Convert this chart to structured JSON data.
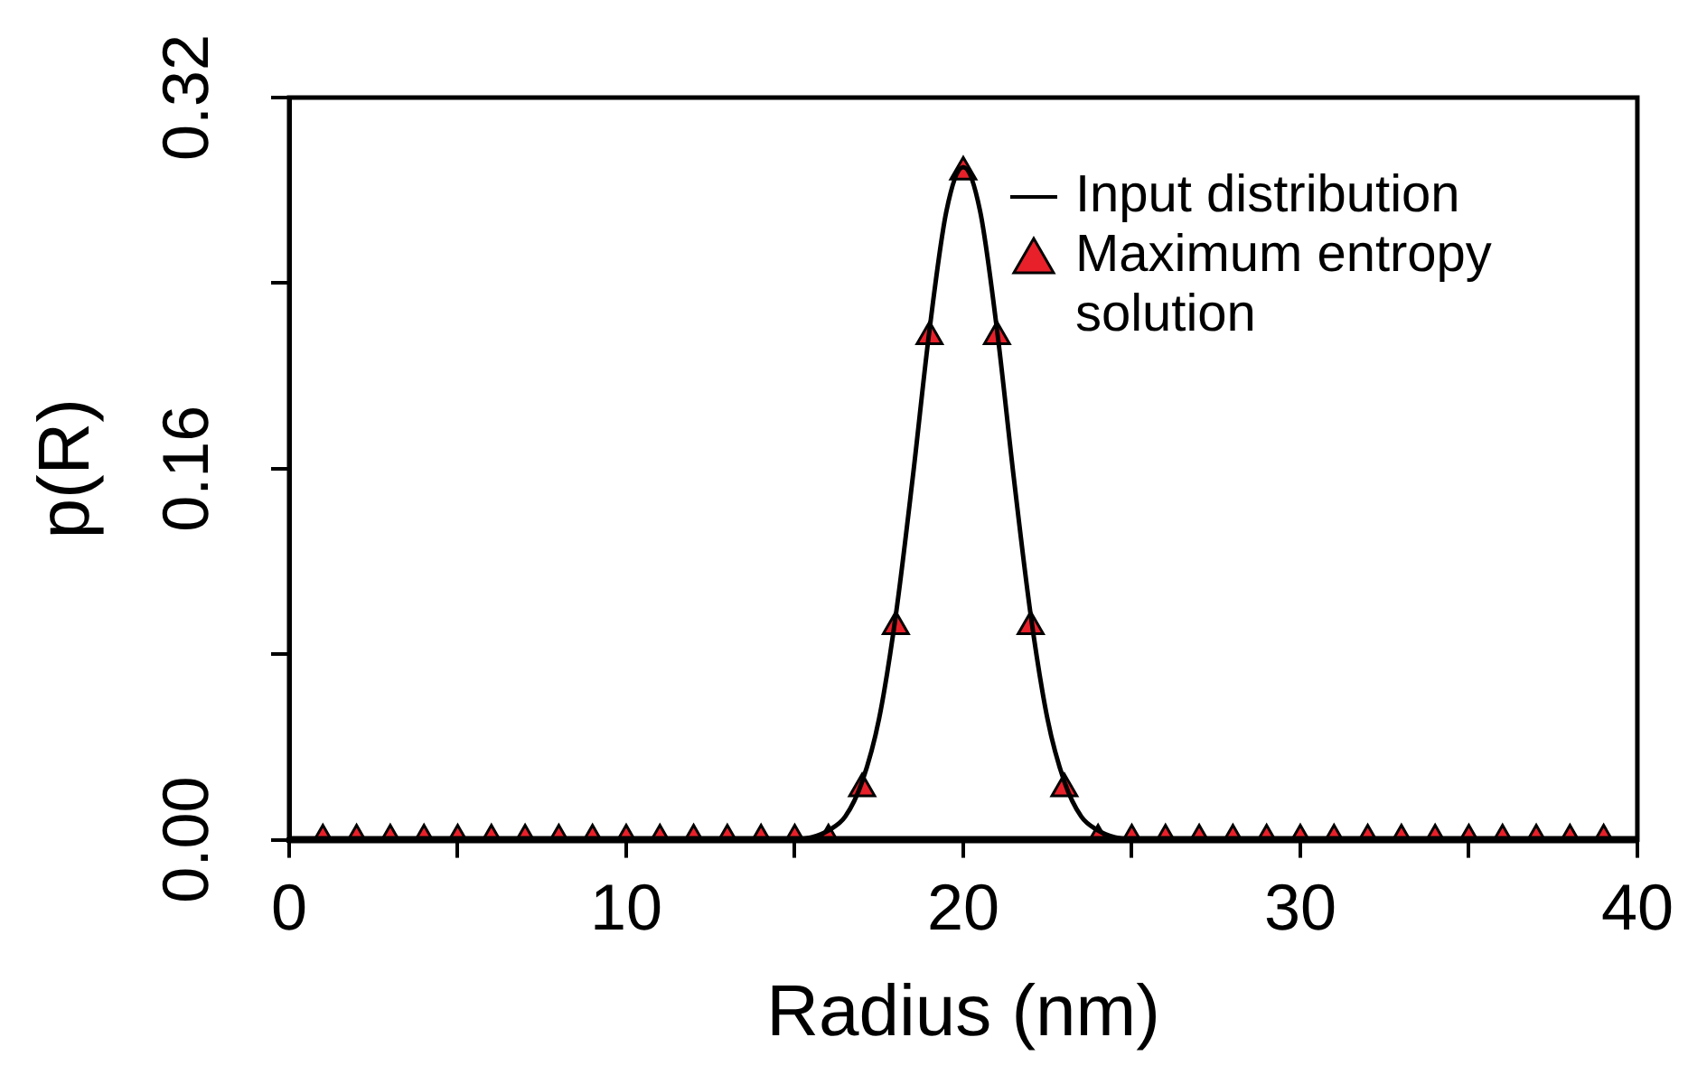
{
  "chart_data": {
    "type": "line",
    "xlabel": "Radius (nm)",
    "ylabel": "p(R)",
    "xlim": [
      0,
      40
    ],
    "xticks": [
      0,
      {
        "value": 5,
        "label": null
      },
      10,
      {
        "value": 15,
        "label": null
      },
      20,
      {
        "value": 25,
        "label": null
      },
      30,
      {
        "value": 35,
        "label": null
      },
      40
    ],
    "ylim": [
      0,
      0.32
    ],
    "yticks": [
      {
        "value": 0,
        "label": "0.00"
      },
      {
        "value": 0.08,
        "label": null
      },
      {
        "value": 0.16,
        "label": "0.16"
      },
      {
        "value": 0.24,
        "label": null
      },
      {
        "value": 0.32,
        "label": "0.32"
      }
    ],
    "grid": false,
    "legend": "top right",
    "series": [
      {
        "name": "Input distribution",
        "type": "line",
        "color": "#000000",
        "marker": "none",
        "x": [
          0,
          15,
          15.5,
          16,
          16.5,
          17,
          17.5,
          18,
          18.5,
          19,
          19.5,
          20,
          20.5,
          21,
          21.5,
          22,
          22.5,
          23,
          23.5,
          24,
          24.5,
          25,
          40
        ],
        "values": [
          0,
          0,
          0.001,
          0.004,
          0.01,
          0.025,
          0.052,
          0.097,
          0.156,
          0.22,
          0.271,
          0.29,
          0.271,
          0.22,
          0.156,
          0.097,
          0.052,
          0.025,
          0.01,
          0.004,
          0.001,
          0,
          0
        ]
      },
      {
        "name": "Maximum entropy solution",
        "type": "scatter",
        "color": "#e8202a",
        "marker": "triangle",
        "x": [
          1,
          2,
          3,
          4,
          5,
          6,
          7,
          8,
          9,
          10,
          11,
          12,
          13,
          14,
          15,
          16,
          17,
          18,
          19,
          20,
          21,
          22,
          23,
          24,
          25,
          26,
          27,
          28,
          29,
          30,
          31,
          32,
          33,
          34,
          35,
          36,
          37,
          38,
          39
        ],
        "values": [
          0,
          0,
          0,
          0,
          0,
          0,
          0,
          0,
          0,
          0,
          0,
          0,
          0,
          0,
          0,
          0,
          0.022,
          0.092,
          0.217,
          0.288,
          0.217,
          0.092,
          0.022,
          0,
          0,
          0,
          0,
          0,
          0,
          0,
          0,
          0,
          0,
          0,
          0,
          0,
          0,
          0,
          0
        ]
      }
    ]
  }
}
